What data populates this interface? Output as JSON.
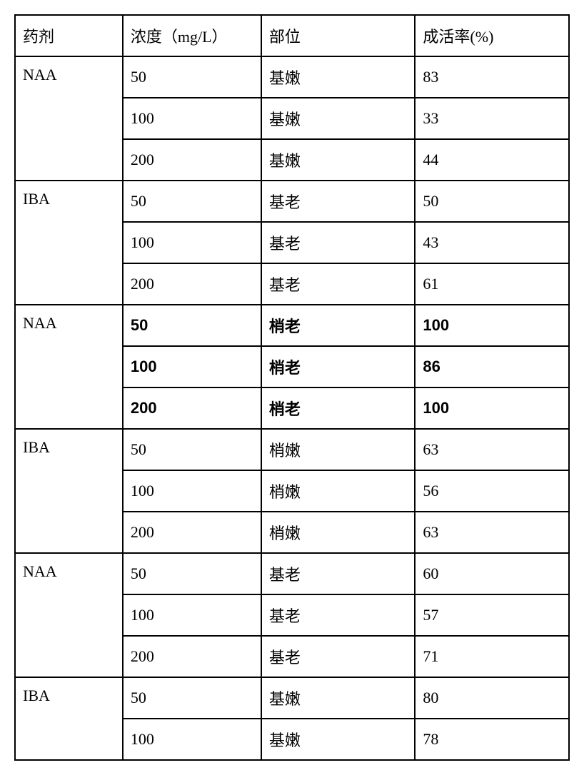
{
  "table": {
    "columns": [
      "药剂",
      "浓度（mg/L）",
      "部位",
      "成活率(%)"
    ],
    "groups": [
      {
        "agent": "NAA",
        "bold": false,
        "rows": [
          {
            "conc": "50",
            "part": "基嫩",
            "rate": "83"
          },
          {
            "conc": "100",
            "part": "基嫩",
            "rate": "33"
          },
          {
            "conc": "200",
            "part": "基嫩",
            "rate": "44"
          }
        ]
      },
      {
        "agent": "IBA",
        "bold": false,
        "rows": [
          {
            "conc": "50",
            "part": "基老",
            "rate": "50"
          },
          {
            "conc": "100",
            "part": "基老",
            "rate": "43"
          },
          {
            "conc": "200",
            "part": "基老",
            "rate": "61"
          }
        ]
      },
      {
        "agent": "NAA",
        "bold": true,
        "rows": [
          {
            "conc": "50",
            "part": "梢老",
            "rate": "100"
          },
          {
            "conc": "100",
            "part": "梢老",
            "rate": "86"
          },
          {
            "conc": "200",
            "part": "梢老",
            "rate": "100"
          }
        ]
      },
      {
        "agent": "IBA",
        "bold": false,
        "rows": [
          {
            "conc": "50",
            "part": "梢嫩",
            "rate": "63"
          },
          {
            "conc": "100",
            "part": "梢嫩",
            "rate": "56"
          },
          {
            "conc": "200",
            "part": "梢嫩",
            "rate": "63"
          }
        ]
      },
      {
        "agent": "NAA",
        "bold": false,
        "rows": [
          {
            "conc": "50",
            "part": "基老",
            "rate": "60"
          },
          {
            "conc": "100",
            "part": "基老",
            "rate": "57"
          },
          {
            "conc": "200",
            "part": "基老",
            "rate": "71"
          }
        ]
      },
      {
        "agent": "IBA",
        "bold": false,
        "rows": [
          {
            "conc": "50",
            "part": "基嫩",
            "rate": "80"
          },
          {
            "conc": "100",
            "part": "基嫩",
            "rate": "78"
          }
        ]
      }
    ],
    "style": {
      "border_color": "#000000",
      "background_color": "#ffffff",
      "font_size": 22,
      "bold_font_family": "SimHei"
    }
  }
}
